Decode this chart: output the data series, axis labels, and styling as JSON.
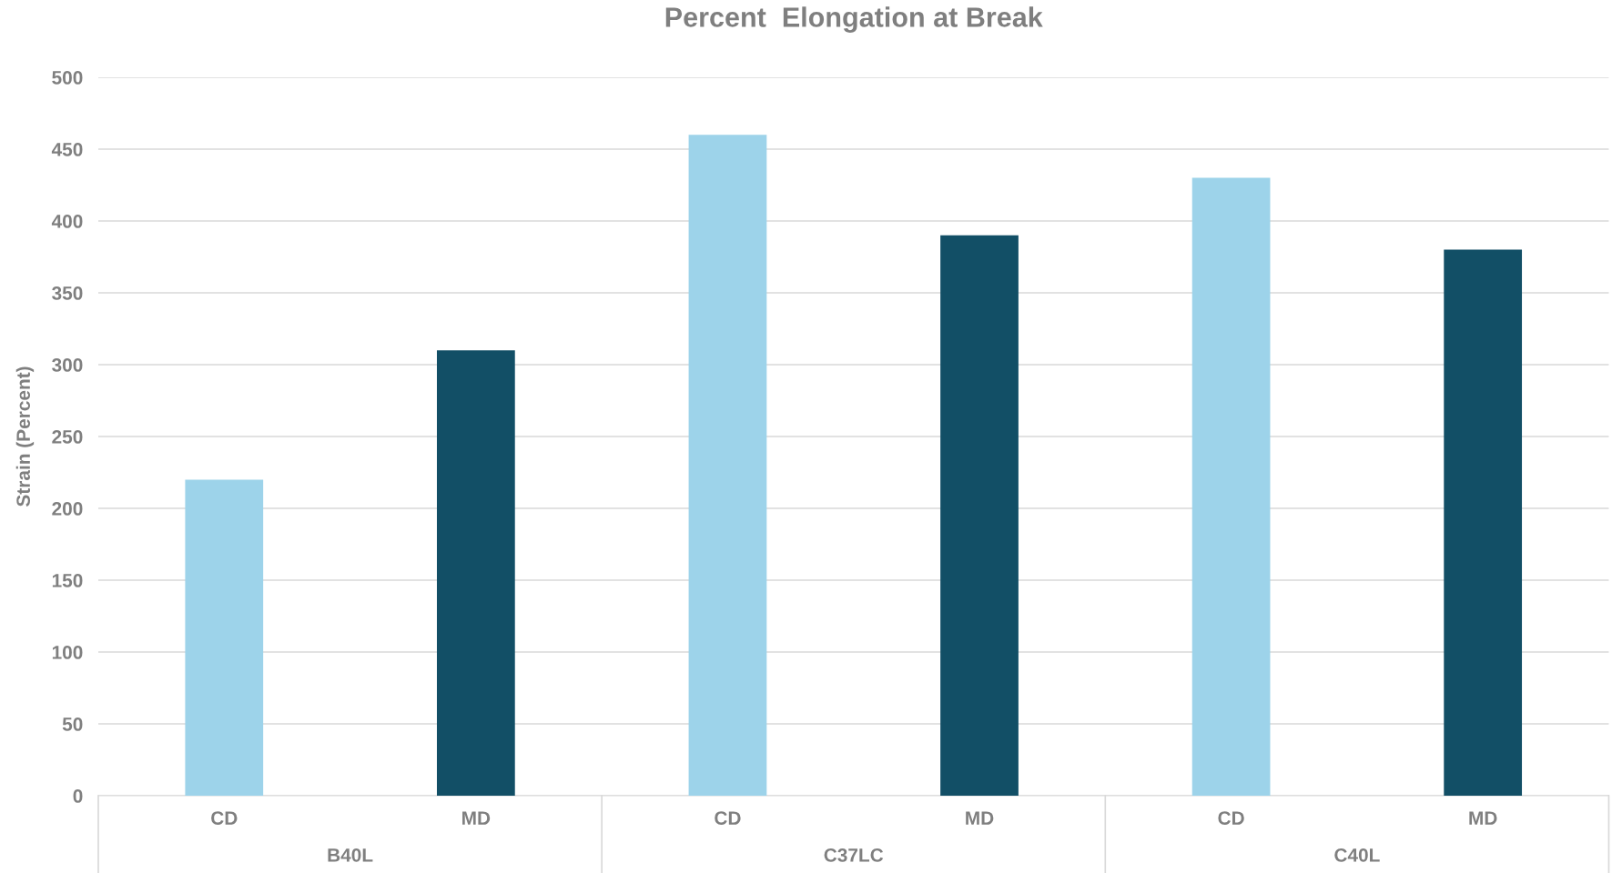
{
  "chart_data": {
    "type": "bar",
    "title": "Percent  Elongation at Break",
    "ylabel": "Strain (Percent)",
    "categories": [
      "CD",
      "MD",
      "CD",
      "MD",
      "CD",
      "MD"
    ],
    "values": [
      220,
      310,
      460,
      390,
      430,
      380
    ],
    "colors": [
      "#9dd3ea",
      "#124f66",
      "#9dd3ea",
      "#124f66",
      "#9dd3ea",
      "#124f66"
    ],
    "annotations": [
      "B40L",
      "C37LC",
      "C40L"
    ],
    "ylim": [
      0,
      500
    ],
    "yticks": [
      0,
      50,
      100,
      150,
      200,
      250,
      300,
      350,
      400,
      450,
      500
    ],
    "grid": "y"
  }
}
